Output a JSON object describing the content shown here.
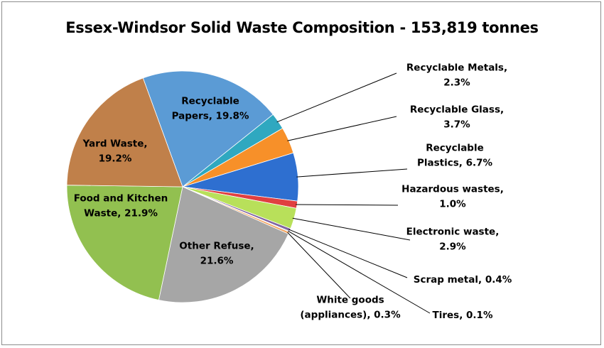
{
  "chart_data": {
    "type": "pie",
    "title": "Essex-Windsor Solid Waste Composition - 153,819 tonnes",
    "slices": [
      {
        "label_lines": [
          "Recyclable",
          "Papers, 19.8%"
        ],
        "name": "Recyclable Papers",
        "value": 19.8,
        "color": "#5b9bd5"
      },
      {
        "label_lines": [
          "Recyclable  Metals,",
          "2.3%"
        ],
        "name": "Recyclable Metals",
        "value": 2.3,
        "color": "#2fa8c0"
      },
      {
        "label_lines": [
          "Recyclable  Glass,",
          "3.7%"
        ],
        "name": "Recyclable Glass",
        "value": 3.7,
        "color": "#f79029"
      },
      {
        "label_lines": [
          "Recyclable",
          "Plastics,  6.7%"
        ],
        "name": "Recyclable Plastics",
        "value": 6.7,
        "color": "#2e6fd0"
      },
      {
        "label_lines": [
          "Hazardous wastes,",
          "1.0%"
        ],
        "name": "Hazardous wastes",
        "value": 1.0,
        "color": "#e04040"
      },
      {
        "label_lines": [
          "Electronic waste,",
          "2.9%"
        ],
        "name": "Electronic waste",
        "value": 2.9,
        "color": "#b8e05a"
      },
      {
        "label_lines": [
          "Scrap metal, 0.4%"
        ],
        "name": "Scrap metal",
        "value": 0.4,
        "color": "#8064a2"
      },
      {
        "label_lines": [
          "Tires, 0.1%"
        ],
        "name": "Tires",
        "value": 0.1,
        "color": "#4bacc6"
      },
      {
        "label_lines": [
          "White goods",
          "(appliances),  0.3%"
        ],
        "name": "White goods (appliances)",
        "value": 0.3,
        "color": "#f4a460"
      },
      {
        "label_lines": [
          "Other Refuse,",
          "21.6%"
        ],
        "name": "Other Refuse",
        "value": 21.6,
        "color": "#a6a6a6"
      },
      {
        "label_lines": [
          "Food and Kitchen",
          "Waste, 21.9%"
        ],
        "name": "Food and Kitchen Waste",
        "value": 21.9,
        "color": "#92c050"
      },
      {
        "label_lines": [
          "Yard Waste,",
          "19.2%"
        ],
        "name": "Yard Waste",
        "value": 19.2,
        "color": "#c0804a"
      }
    ]
  }
}
